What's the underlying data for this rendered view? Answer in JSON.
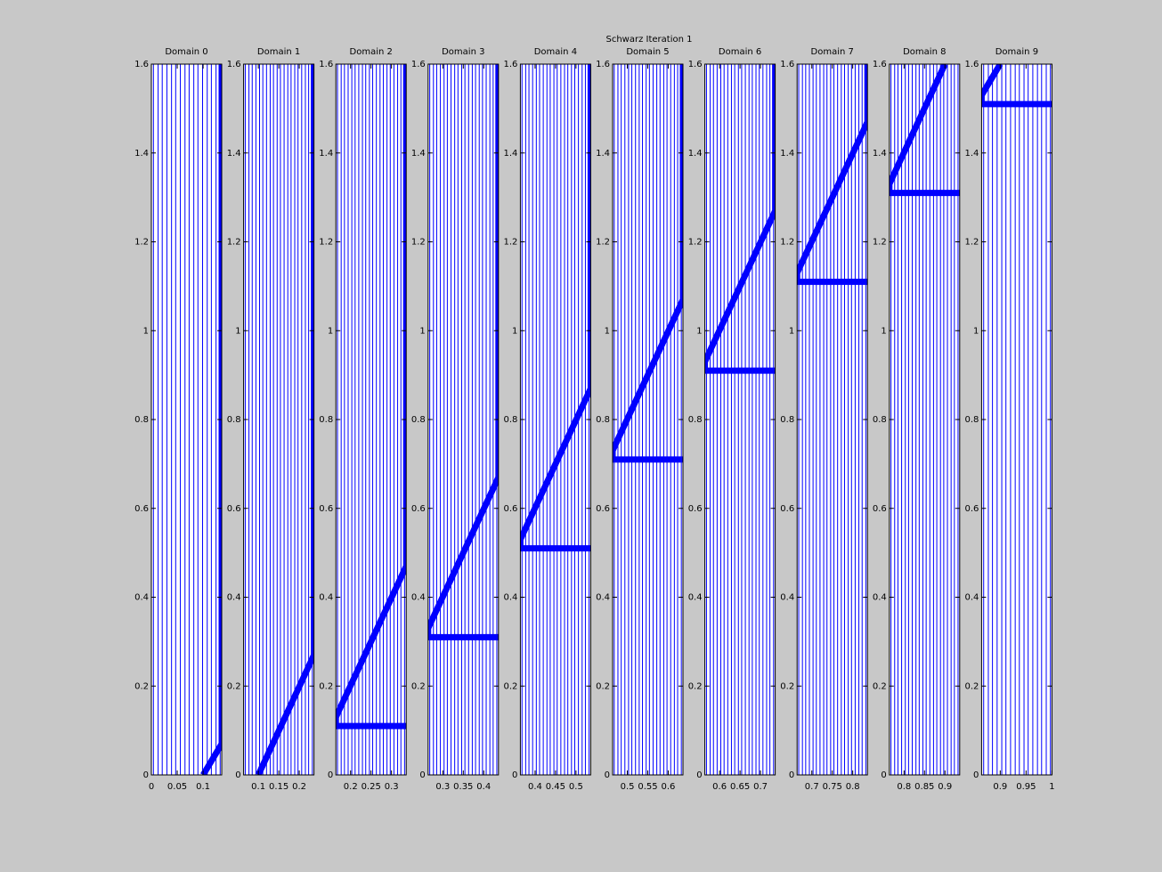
{
  "title": "Schwarz Iteration 1",
  "chart_data": [
    {
      "type": "line",
      "title": "Domain 0",
      "xlim": [
        0,
        0.136
      ],
      "xticks": [
        0,
        0.05,
        0.1
      ],
      "ylim": [
        0,
        1.6
      ],
      "yticks": [
        0,
        0.2,
        0.4,
        0.6,
        0.8,
        1,
        1.2,
        1.4,
        1.6
      ],
      "color": "#0000ff",
      "curves_x": [
        0.004,
        0.013,
        0.021,
        0.03,
        0.039,
        0.047,
        0.056,
        0.065,
        0.073,
        0.082,
        0.09,
        0.099,
        0.108,
        0.116,
        0.125,
        0.133
      ],
      "front": {
        "x": [
          0.1,
          0.136,
          0.136
        ],
        "y": [
          0,
          0.07,
          1.6
        ]
      }
    },
    {
      "type": "line",
      "title": "Domain 1",
      "xlim": [
        0.064,
        0.236
      ],
      "xticks": [
        0.1,
        0.15,
        0.2
      ],
      "ylim": [
        0,
        1.6
      ],
      "yticks": [
        0,
        0.2,
        0.4,
        0.6,
        0.8,
        1,
        1.2,
        1.4,
        1.6
      ],
      "color": "#0000ff",
      "curves_x": [
        0.068,
        0.077,
        0.085,
        0.094,
        0.103,
        0.111,
        0.12,
        0.129,
        0.137,
        0.146,
        0.154,
        0.163,
        0.172,
        0.18,
        0.189,
        0.197,
        0.206,
        0.215,
        0.223,
        0.232
      ],
      "front": {
        "x": [
          0.1,
          0.236,
          0.236
        ],
        "y": [
          0,
          0.27,
          1.6
        ]
      }
    },
    {
      "type": "line",
      "title": "Domain 2",
      "xlim": [
        0.164,
        0.336
      ],
      "xticks": [
        0.2,
        0.25,
        0.3
      ],
      "ylim": [
        0,
        1.6
      ],
      "yticks": [
        0,
        0.2,
        0.4,
        0.6,
        0.8,
        1,
        1.2,
        1.4,
        1.6
      ],
      "color": "#0000ff",
      "curves_x": [
        0.168,
        0.177,
        0.185,
        0.194,
        0.203,
        0.211,
        0.22,
        0.229,
        0.237,
        0.246,
        0.254,
        0.263,
        0.272,
        0.28,
        0.289,
        0.297,
        0.306,
        0.315,
        0.323,
        0.332
      ],
      "front": {
        "x": [
          0.336,
          0.164,
          0.164,
          0.336,
          0.336
        ],
        "y": [
          0.11,
          0.11,
          0.13,
          0.47,
          1.6
        ]
      }
    },
    {
      "type": "line",
      "title": "Domain 3",
      "xlim": [
        0.264,
        0.436
      ],
      "xticks": [
        0.3,
        0.35,
        0.4
      ],
      "ylim": [
        0,
        1.6
      ],
      "yticks": [
        0,
        0.2,
        0.4,
        0.6,
        0.8,
        1,
        1.2,
        1.4,
        1.6
      ],
      "color": "#0000ff",
      "curves_x": [
        0.268,
        0.277,
        0.285,
        0.294,
        0.303,
        0.311,
        0.32,
        0.329,
        0.337,
        0.346,
        0.354,
        0.363,
        0.372,
        0.38,
        0.389,
        0.397,
        0.406,
        0.415,
        0.423,
        0.432
      ],
      "front": {
        "x": [
          0.436,
          0.264,
          0.264,
          0.436,
          0.436
        ],
        "y": [
          0.31,
          0.31,
          0.33,
          0.67,
          1.6
        ]
      }
    },
    {
      "type": "line",
      "title": "Domain 4",
      "xlim": [
        0.364,
        0.536
      ],
      "xticks": [
        0.4,
        0.45,
        0.5
      ],
      "ylim": [
        0,
        1.6
      ],
      "yticks": [
        0,
        0.2,
        0.4,
        0.6,
        0.8,
        1,
        1.2,
        1.4,
        1.6
      ],
      "color": "#0000ff",
      "curves_x": [
        0.368,
        0.377,
        0.385,
        0.394,
        0.403,
        0.411,
        0.42,
        0.429,
        0.437,
        0.446,
        0.454,
        0.463,
        0.472,
        0.48,
        0.489,
        0.497,
        0.506,
        0.515,
        0.523,
        0.532
      ],
      "front": {
        "x": [
          0.536,
          0.364,
          0.364,
          0.536,
          0.536
        ],
        "y": [
          0.51,
          0.51,
          0.53,
          0.87,
          1.6
        ]
      }
    },
    {
      "type": "line",
      "title": "Domain 5",
      "xlim": [
        0.464,
        0.636
      ],
      "xticks": [
        0.5,
        0.55,
        0.6
      ],
      "ylim": [
        0,
        1.6
      ],
      "yticks": [
        0,
        0.2,
        0.4,
        0.6,
        0.8,
        1,
        1.2,
        1.4,
        1.6
      ],
      "color": "#0000ff",
      "curves_x": [
        0.468,
        0.477,
        0.485,
        0.494,
        0.503,
        0.511,
        0.52,
        0.529,
        0.537,
        0.546,
        0.554,
        0.563,
        0.572,
        0.58,
        0.589,
        0.597,
        0.606,
        0.615,
        0.623,
        0.632
      ],
      "front": {
        "x": [
          0.636,
          0.464,
          0.464,
          0.636,
          0.636
        ],
        "y": [
          0.71,
          0.71,
          0.73,
          1.07,
          1.6
        ]
      }
    },
    {
      "type": "line",
      "title": "Domain 6",
      "xlim": [
        0.564,
        0.736
      ],
      "xticks": [
        0.6,
        0.65,
        0.7
      ],
      "ylim": [
        0,
        1.6
      ],
      "yticks": [
        0,
        0.2,
        0.4,
        0.6,
        0.8,
        1,
        1.2,
        1.4,
        1.6
      ],
      "color": "#0000ff",
      "curves_x": [
        0.568,
        0.577,
        0.585,
        0.594,
        0.603,
        0.611,
        0.62,
        0.629,
        0.637,
        0.646,
        0.654,
        0.663,
        0.672,
        0.68,
        0.689,
        0.697,
        0.706,
        0.715,
        0.723,
        0.732
      ],
      "front": {
        "x": [
          0.736,
          0.564,
          0.564,
          0.736,
          0.736
        ],
        "y": [
          0.91,
          0.91,
          0.93,
          1.27,
          1.6
        ]
      }
    },
    {
      "type": "line",
      "title": "Domain 7",
      "xlim": [
        0.664,
        0.836
      ],
      "xticks": [
        0.7,
        0.75,
        0.8
      ],
      "ylim": [
        0,
        1.6
      ],
      "yticks": [
        0,
        0.2,
        0.4,
        0.6,
        0.8,
        1,
        1.2,
        1.4,
        1.6
      ],
      "color": "#0000ff",
      "curves_x": [
        0.668,
        0.677,
        0.685,
        0.694,
        0.703,
        0.711,
        0.72,
        0.729,
        0.737,
        0.746,
        0.754,
        0.763,
        0.772,
        0.78,
        0.789,
        0.797,
        0.806,
        0.815,
        0.823,
        0.832
      ],
      "front": {
        "x": [
          0.836,
          0.664,
          0.664,
          0.836,
          0.836
        ],
        "y": [
          1.11,
          1.11,
          1.13,
          1.47,
          1.6
        ]
      }
    },
    {
      "type": "line",
      "title": "Domain 8",
      "xlim": [
        0.764,
        0.936
      ],
      "xticks": [
        0.8,
        0.85,
        0.9
      ],
      "ylim": [
        0,
        1.6
      ],
      "yticks": [
        0,
        0.2,
        0.4,
        0.6,
        0.8,
        1,
        1.2,
        1.4,
        1.6
      ],
      "color": "#0000ff",
      "curves_x": [
        0.768,
        0.777,
        0.785,
        0.794,
        0.803,
        0.811,
        0.82,
        0.829,
        0.837,
        0.846,
        0.854,
        0.863,
        0.872,
        0.88,
        0.889,
        0.897,
        0.906,
        0.915,
        0.923,
        0.932
      ],
      "front": {
        "x": [
          0.936,
          0.764,
          0.764,
          0.9
        ],
        "y": [
          1.31,
          1.31,
          1.33,
          1.6
        ]
      }
    },
    {
      "type": "line",
      "title": "Domain 9",
      "xlim": [
        0.864,
        1
      ],
      "xticks": [
        0.9,
        0.95,
        1
      ],
      "ylim": [
        0,
        1.6
      ],
      "yticks": [
        0,
        0.2,
        0.4,
        0.6,
        0.8,
        1,
        1.2,
        1.4,
        1.6
      ],
      "color": "#0000ff",
      "curves_x": [
        0.868,
        0.877,
        0.885,
        0.894,
        0.903,
        0.911,
        0.92,
        0.929,
        0.937,
        0.946,
        0.954,
        0.963,
        0.972,
        0.98,
        0.989,
        0.997
      ],
      "front": {
        "x": [
          1,
          0.864,
          0.864,
          0.9
        ],
        "y": [
          1.51,
          1.51,
          1.53,
          1.6
        ]
      }
    }
  ]
}
